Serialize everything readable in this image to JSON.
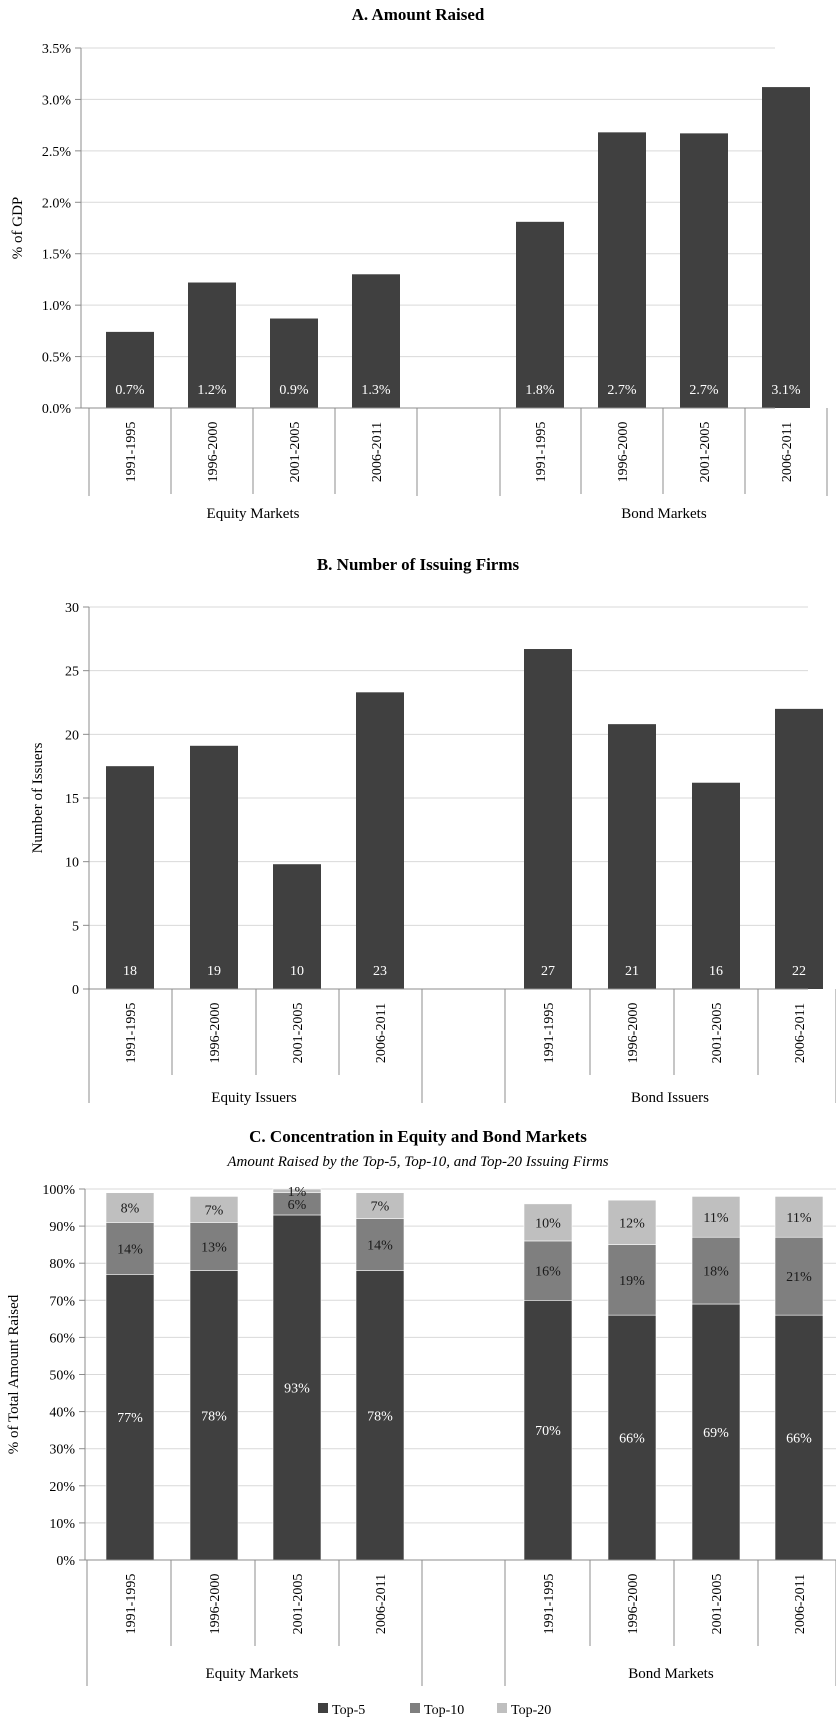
{
  "colors": {
    "top5": "#404040",
    "top10": "#7f7f7f",
    "top20": "#bfbfbf",
    "grid": "#d9d9d9",
    "axis": "#8c8c8c",
    "label_on_bar": "#ffffff",
    "label_on_light": "#1a1a1a"
  },
  "chart_data": [
    {
      "id": "A",
      "type": "bar",
      "title": "A. Amount Raised",
      "ylabel": "% of GDP",
      "ylim": [
        0,
        3.5
      ],
      "yticks": [
        "0.0%",
        "0.5%",
        "1.0%",
        "1.5%",
        "2.0%",
        "2.5%",
        "3.0%",
        "3.5%"
      ],
      "grid": true,
      "groups": [
        {
          "name": "Equity Markets",
          "categories": [
            "1991-1995",
            "1996-2000",
            "2001-2005",
            "2006-2011"
          ],
          "values": [
            0.74,
            1.22,
            0.87,
            1.3
          ],
          "labels": [
            "0.7%",
            "1.2%",
            "0.9%",
            "1.3%"
          ]
        },
        {
          "name": "Bond Markets",
          "categories": [
            "1991-1995",
            "1996-2000",
            "2001-2005",
            "2006-2011"
          ],
          "values": [
            1.81,
            2.68,
            2.67,
            3.12
          ],
          "labels": [
            "1.8%",
            "2.7%",
            "2.7%",
            "3.1%"
          ]
        }
      ]
    },
    {
      "id": "B",
      "type": "bar",
      "title": "B. Number of  Issuing Firms",
      "ylabel": "Number of Issuers",
      "ylim": [
        0,
        30
      ],
      "yticks": [
        "0",
        "5",
        "10",
        "15",
        "20",
        "25",
        "30"
      ],
      "grid": true,
      "groups": [
        {
          "name": "Equity Issuers",
          "categories": [
            "1991-1995",
            "1996-2000",
            "2001-2005",
            "2006-2011"
          ],
          "values": [
            17.5,
            19.1,
            9.8,
            23.3
          ],
          "labels": [
            "18",
            "19",
            "10",
            "23"
          ]
        },
        {
          "name": "Bond Issuers",
          "categories": [
            "1991-1995",
            "1996-2000",
            "2001-2005",
            "2006-2011"
          ],
          "values": [
            26.7,
            20.8,
            16.2,
            22.0
          ],
          "labels": [
            "27",
            "21",
            "16",
            "22"
          ]
        }
      ]
    },
    {
      "id": "C",
      "type": "bar",
      "stacked": true,
      "title": "C. Concentration in Equity and Bond Markets",
      "subtitle": "Amount Raised by the Top-5, Top-10, and Top-20 Issuing Firms",
      "ylabel": "% of Total Amount Raised",
      "ylim": [
        0,
        100
      ],
      "yticks": [
        "0%",
        "10%",
        "20%",
        "30%",
        "40%",
        "50%",
        "60%",
        "70%",
        "80%",
        "90%",
        "100%"
      ],
      "grid": true,
      "legend": {
        "position": "bottom",
        "entries": [
          "Top-5",
          "Top-10",
          "Top-20"
        ]
      },
      "groups": [
        {
          "name": "Equity Markets",
          "categories": [
            "1991-1995",
            "1996-2000",
            "2001-2005",
            "2006-2011"
          ],
          "series": [
            {
              "name": "Top-5",
              "values": [
                77,
                78,
                93,
                78
              ],
              "labels": [
                "77%",
                "78%",
                "93%",
                "78%"
              ]
            },
            {
              "name": "Top-10",
              "values": [
                14,
                13,
                6,
                14
              ],
              "labels": [
                "14%",
                "13%",
                "6%",
                "14%"
              ]
            },
            {
              "name": "Top-20",
              "values": [
                8,
                7,
                1,
                7
              ],
              "labels": [
                "8%",
                "7%",
                "1%",
                "7%"
              ]
            }
          ]
        },
        {
          "name": "Bond Markets",
          "categories": [
            "1991-1995",
            "1996-2000",
            "2001-2005",
            "2006-2011"
          ],
          "series": [
            {
              "name": "Top-5",
              "values": [
                70,
                66,
                69,
                66
              ],
              "labels": [
                "70%",
                "66%",
                "69%",
                "66%"
              ]
            },
            {
              "name": "Top-10",
              "values": [
                16,
                19,
                18,
                21
              ],
              "labels": [
                "16%",
                "19%",
                "18%",
                "21%"
              ]
            },
            {
              "name": "Top-20",
              "values": [
                10,
                12,
                11,
                11
              ],
              "labels": [
                "10%",
                "12%",
                "11%",
                "11%"
              ]
            }
          ]
        }
      ]
    }
  ]
}
